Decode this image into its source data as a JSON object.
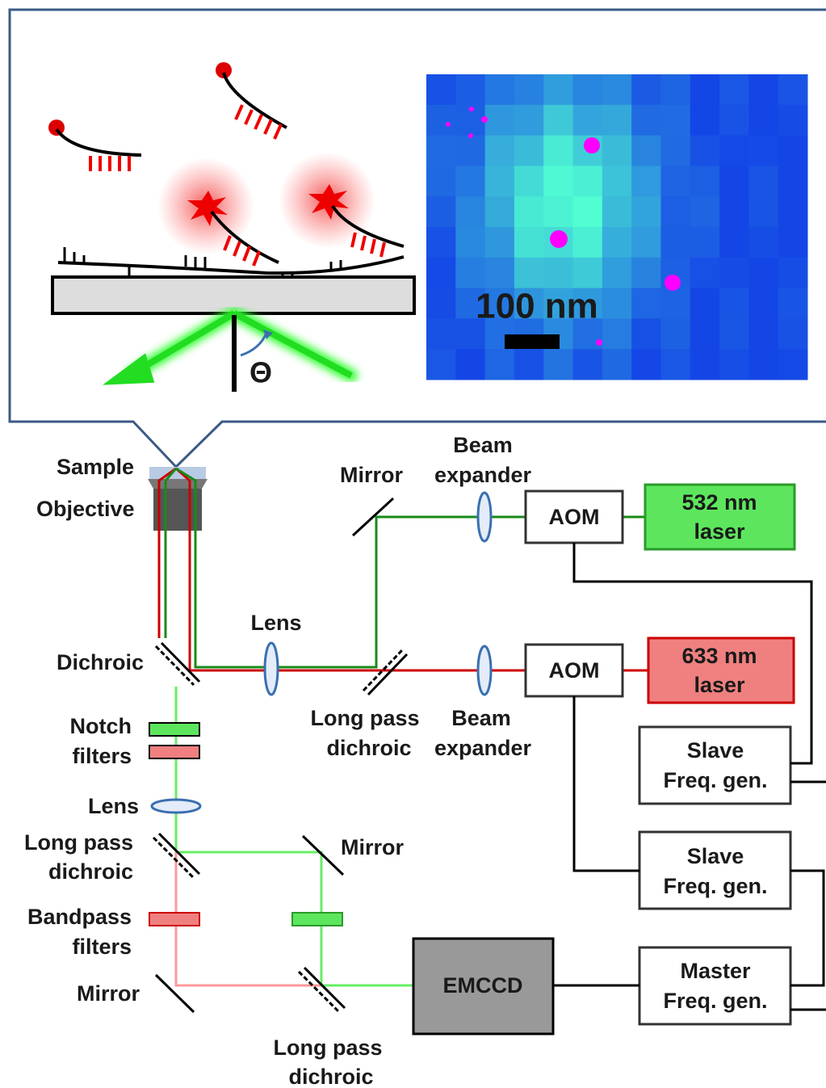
{
  "inset": {
    "scale_bar": "100 nm",
    "angle_symbol": "Θ"
  },
  "labels": [
    {
      "lines": [
        "Sample"
      ]
    },
    {
      "lines": [
        "Objective"
      ]
    },
    {
      "lines": [
        "Mirror"
      ]
    },
    {
      "lines": [
        "Beam",
        "expander"
      ]
    },
    {
      "lines": [
        "AOM"
      ]
    },
    {
      "lines": [
        "532 nm",
        "laser"
      ]
    },
    {
      "lines": [
        "Lens"
      ]
    },
    {
      "lines": [
        "Dichroic"
      ]
    },
    {
      "lines": [
        "AOM"
      ]
    },
    {
      "lines": [
        "633 nm",
        "laser"
      ]
    },
    {
      "lines": [
        "Long pass",
        "dichroic"
      ]
    },
    {
      "lines": [
        "Beam",
        "expander"
      ]
    },
    {
      "lines": [
        "Slave",
        "Freq. gen."
      ]
    },
    {
      "lines": [
        "Notch",
        "filters"
      ]
    },
    {
      "lines": [
        "Lens"
      ]
    },
    {
      "lines": [
        "Long pass",
        "dichroic"
      ]
    },
    {
      "lines": [
        "Mirror"
      ]
    },
    {
      "lines": [
        "Slave",
        "Freq. gen."
      ]
    },
    {
      "lines": [
        "Bandpass",
        "filters"
      ]
    },
    {
      "lines": [
        "Mirror"
      ]
    },
    {
      "lines": [
        "EMCCD"
      ]
    },
    {
      "lines": [
        "Master",
        "Freq. gen."
      ]
    },
    {
      "lines": [
        "Long pass",
        "dichroic"
      ]
    }
  ]
}
